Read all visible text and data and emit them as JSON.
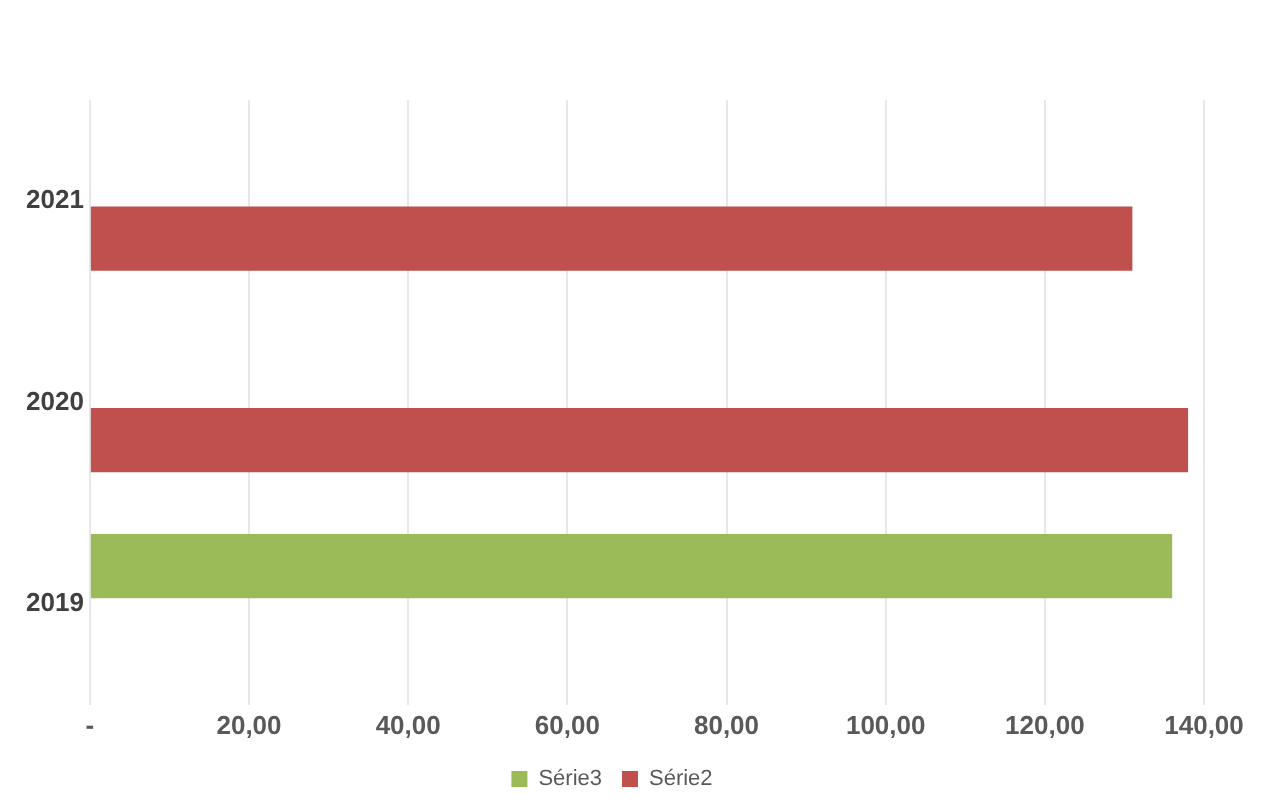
{
  "chart_data": {
    "type": "bar",
    "orientation": "horizontal",
    "categories": [
      "2021",
      "2020",
      "2019"
    ],
    "series": [
      {
        "name": "Série3",
        "color": "#9bbb59",
        "values": [
          0,
          0,
          136
        ]
      },
      {
        "name": "Série2",
        "color": "#c0504d",
        "values": [
          131,
          138,
          0
        ]
      }
    ],
    "xlim": [
      0,
      140
    ],
    "xticks": [
      {
        "value": 0,
        "label": "-"
      },
      {
        "value": 20,
        "label": "20,00"
      },
      {
        "value": 40,
        "label": "40,00"
      },
      {
        "value": 60,
        "label": "60,00"
      },
      {
        "value": 80,
        "label": "80,00"
      },
      {
        "value": 100,
        "label": "100,00"
      },
      {
        "value": 120,
        "label": "120,00"
      },
      {
        "value": 140,
        "label": "140,00"
      }
    ],
    "grid": "x",
    "legend": "bottom"
  }
}
